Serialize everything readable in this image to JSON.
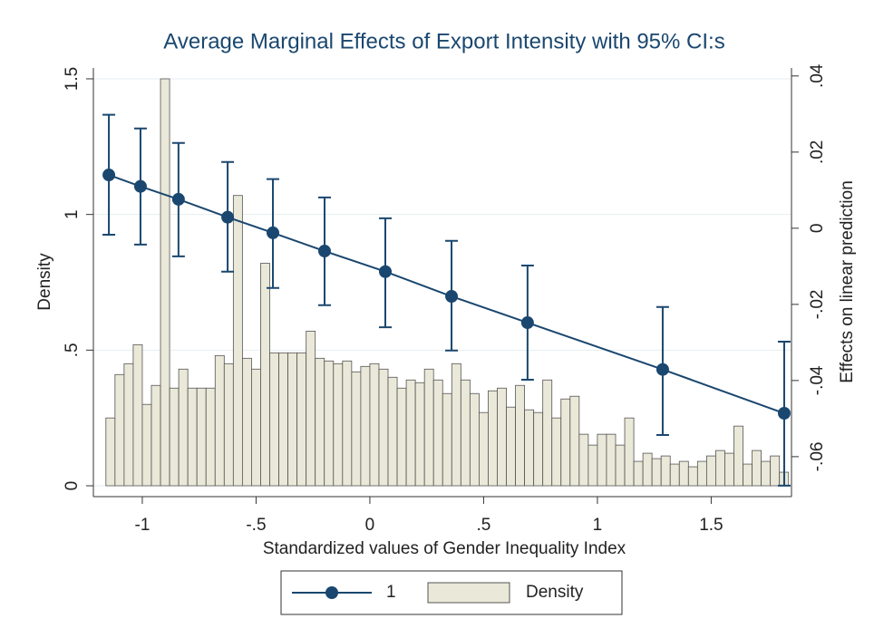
{
  "chart_data": {
    "type": "combo",
    "title": "Average Marginal Effects of Export Intensity with 95% CI:s",
    "x_label": "Standardized values of Gender Inequality Index",
    "y_label": "Density",
    "y2_label": "Effects on linear prediction",
    "xlim": [
      -1.215,
      1.853
    ],
    "xticks": [
      -1,
      {
        "value": -0.5,
        "label": "-.5"
      },
      0,
      {
        "value": 0.5,
        "label": ".5"
      },
      1,
      1.5
    ],
    "ylim": [
      -0.04,
      1.54
    ],
    "yticks": [
      0,
      {
        "value": 0.5,
        "label": ".5"
      },
      1,
      1.5
    ],
    "y2lim": [
      -0.0705,
      0.0421
    ],
    "y2ticks": [
      {
        "value": 0.04,
        "label": ".04"
      },
      {
        "value": 0.02,
        "label": ".02"
      },
      0,
      {
        "value": -0.02,
        "label": "-.02"
      },
      {
        "value": -0.04,
        "label": "-.04"
      },
      {
        "value": -0.06,
        "label": "-.06"
      }
    ],
    "grid": true,
    "legend": "bottom",
    "layers": [
      {
        "type": "line",
        "name": "1",
        "color": "#1a476f",
        "axis": "y2",
        "x": [
          -1.147,
          -1.008,
          -0.841,
          -0.625,
          -0.426,
          -0.199,
          0.068,
          0.359,
          0.693,
          1.287,
          1.821
        ],
        "values": [
          0.014,
          0.011,
          0.0076,
          0.0029,
          -0.0012,
          -0.006,
          -0.0114,
          -0.0179,
          -0.0248,
          -0.0371,
          -0.0486
        ],
        "lower": [
          -0.0017,
          -0.0043,
          -0.0074,
          -0.0114,
          -0.0157,
          -0.0202,
          -0.026,
          -0.0321,
          -0.0398,
          -0.0543,
          -0.0676
        ],
        "upper": [
          0.0298,
          0.0262,
          0.0224,
          0.0174,
          0.0129,
          0.0081,
          0.0026,
          -0.0033,
          -0.0098,
          -0.0207,
          -0.0298
        ]
      },
      {
        "type": "histogram",
        "name": "Density",
        "color": "#eae8d8",
        "bins": [
          -1.16,
          -1.12,
          -1.08,
          -1.04,
          -1,
          -0.96,
          -0.92,
          -0.88,
          -0.84,
          -0.8,
          -0.76,
          -0.72,
          -0.68,
          -0.64,
          -0.6,
          -0.56,
          -0.52,
          -0.48,
          -0.44,
          -0.4,
          -0.36,
          -0.32,
          -0.28,
          -0.24,
          -0.2,
          -0.16,
          -0.12,
          -0.08,
          -0.04,
          0,
          0.04,
          0.08,
          0.12,
          0.16,
          0.2,
          0.24,
          0.28,
          0.32,
          0.36,
          0.4,
          0.44,
          0.48,
          0.52,
          0.56,
          0.6,
          0.64,
          0.68,
          0.72,
          0.76,
          0.8,
          0.84,
          0.88,
          0.92,
          0.96,
          1,
          1.04,
          1.08,
          1.12,
          1.16,
          1.2,
          1.24,
          1.28,
          1.32,
          1.36,
          1.4,
          1.44,
          1.48,
          1.52,
          1.56,
          1.6,
          1.64,
          1.68,
          1.72,
          1.76,
          1.8,
          1.84
        ],
        "values": [
          0.25,
          0.41,
          0.45,
          0.52,
          0.3,
          0.37,
          1.5,
          0.36,
          0.43,
          0.36,
          0.36,
          0.36,
          0.48,
          0.45,
          1.07,
          0.47,
          0.43,
          0.82,
          0.49,
          0.49,
          0.49,
          0.49,
          0.57,
          0.47,
          0.46,
          0.45,
          0.46,
          0.42,
          0.44,
          0.45,
          0.43,
          0.4,
          0.36,
          0.39,
          0.38,
          0.43,
          0.39,
          0.34,
          0.45,
          0.39,
          0.34,
          0.27,
          0.35,
          0.36,
          0.29,
          0.37,
          0.28,
          0.27,
          0.39,
          0.25,
          0.32,
          0.33,
          0.19,
          0.15,
          0.19,
          0.19,
          0.15,
          0.25,
          0.09,
          0.12,
          0.1,
          0.11,
          0.08,
          0.09,
          0.07,
          0.09,
          0.11,
          0.13,
          0.12,
          0.22,
          0.08,
          0.13,
          0.09,
          0.11,
          0.05
        ]
      }
    ]
  }
}
